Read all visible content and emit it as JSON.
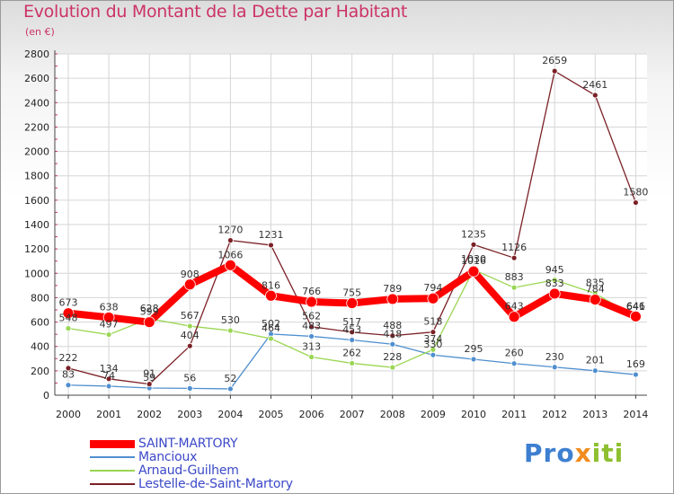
{
  "title": "Evolution du Montant de la Dette par Habitant",
  "subtitle": "(en €)",
  "logo": {
    "p1": "Pro",
    "p2": "x",
    "p3": "iti"
  },
  "chart_data": {
    "type": "line",
    "title": "Evolution du Montant de la Dette par Habitant",
    "ylabel": "(en €)",
    "xlabel": "",
    "ylim": [
      0,
      2800
    ],
    "yticks": [
      0,
      200,
      400,
      600,
      800,
      1000,
      1200,
      1400,
      1600,
      1800,
      2000,
      2200,
      2400,
      2600,
      2800
    ],
    "x": [
      "2000",
      "2001",
      "2002",
      "2003",
      "2004",
      "2005",
      "2006",
      "2007",
      "2008",
      "2009",
      "2010",
      "2011",
      "2012",
      "2013",
      "2014"
    ],
    "grid": true,
    "legend_position": "bottom-left",
    "series": [
      {
        "name": "SAINT-MARTORY",
        "color": "#ff0000",
        "values": [
          673,
          638,
          599,
          908,
          1066,
          816,
          766,
          755,
          789,
          794,
          1016,
          643,
          833,
          784,
          646
        ]
      },
      {
        "name": "Mancioux",
        "color": "#4f8fcf",
        "values": [
          83,
          74,
          59,
          56,
          52,
          502,
          483,
          453,
          418,
          330,
          295,
          260,
          230,
          201,
          169
        ]
      },
      {
        "name": "Arnaud-Guilhem",
        "color": "#9ad652",
        "values": [
          548,
          497,
          628,
          567,
          530,
          464,
          313,
          262,
          228,
          374,
          1030,
          883,
          945,
          835,
          641
        ]
      },
      {
        "name": "Lestelle-de-Saint-Martory",
        "color": "#7b2026",
        "values": [
          222,
          134,
          91,
          404,
          1270,
          1231,
          562,
          517,
          488,
          518,
          1235,
          1126,
          2659,
          2461,
          1580
        ]
      }
    ]
  }
}
